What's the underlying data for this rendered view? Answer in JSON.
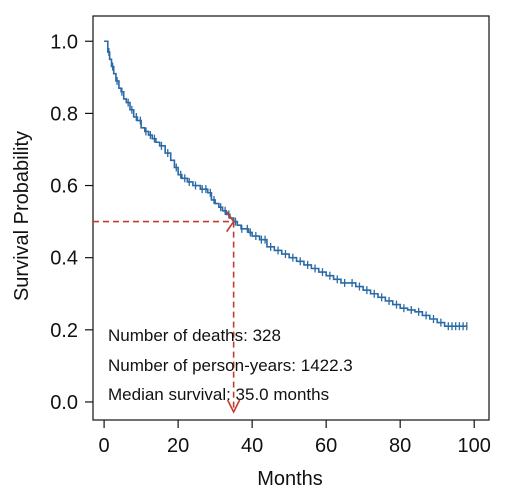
{
  "chart_data": {
    "type": "line",
    "xlabel": "Months",
    "ylabel": "Survival Probability",
    "xlim": [
      -3,
      104
    ],
    "ylim": [
      -0.05,
      1.07
    ],
    "xticks": [
      0,
      20,
      40,
      60,
      80,
      100
    ],
    "yticks": [
      0.0,
      0.2,
      0.4,
      0.6,
      0.8,
      1.0
    ],
    "xtick_labels": [
      "0",
      "20",
      "40",
      "60",
      "80",
      "100"
    ],
    "ytick_labels": [
      "0.0",
      "0.2",
      "0.4",
      "0.6",
      "0.8",
      "1.0"
    ],
    "grid": false,
    "series": [
      {
        "type": "step",
        "x": [
          0,
          1,
          1.5,
          2.0,
          2.6,
          3.2,
          4.0,
          4.6,
          5.3,
          6.0,
          7.0,
          8.0,
          9.0,
          10.0,
          11.0,
          12.0,
          13.0,
          14.0,
          15.0,
          16.5,
          18.0,
          19.0,
          20.0,
          21.0,
          22.5,
          24.0,
          26.0,
          28.0,
          29.0,
          30.0,
          31.0,
          32.0,
          33.0,
          34.0,
          35.0,
          36.0,
          37.0,
          38.0,
          39.0,
          40.0,
          42.0,
          44.0,
          46.0,
          48.0,
          50.0,
          52.0,
          54.0,
          56.0,
          58.0,
          60.0,
          62.0,
          64.0,
          66.0,
          68.0,
          70.0,
          72.0,
          74.0,
          76.0,
          78.0,
          80.0,
          82.0,
          84.0,
          86.0,
          88.0,
          90.0,
          92.0,
          94.0,
          96.0,
          98.0
        ],
        "y": [
          1.0,
          0.97,
          0.95,
          0.93,
          0.91,
          0.89,
          0.87,
          0.86,
          0.84,
          0.83,
          0.81,
          0.79,
          0.78,
          0.76,
          0.75,
          0.74,
          0.73,
          0.72,
          0.71,
          0.69,
          0.67,
          0.65,
          0.63,
          0.62,
          0.61,
          0.6,
          0.59,
          0.58,
          0.56,
          0.55,
          0.54,
          0.53,
          0.52,
          0.51,
          0.5,
          0.49,
          0.48,
          0.48,
          0.47,
          0.46,
          0.45,
          0.43,
          0.42,
          0.41,
          0.4,
          0.39,
          0.38,
          0.37,
          0.36,
          0.35,
          0.34,
          0.33,
          0.33,
          0.32,
          0.31,
          0.3,
          0.29,
          0.28,
          0.27,
          0.26,
          0.255,
          0.25,
          0.24,
          0.23,
          0.22,
          0.21,
          0.21,
          0.21,
          0.21
        ],
        "censored": [
          1.3,
          2.3,
          3.5,
          4.8,
          6.5,
          7.5,
          8.7,
          9.8,
          11.3,
          12.5,
          13.6,
          15.5,
          17.2,
          19.5,
          20.7,
          21.8,
          23.0,
          24.7,
          26.5,
          27.5,
          28.7,
          29.7,
          31.5,
          32.7,
          33.7,
          35.5,
          37.2,
          38.7,
          39.5,
          41.0,
          42.5,
          43.5,
          45.0,
          47.0,
          49.0,
          51.0,
          53.0,
          55.0,
          57.0,
          59.0,
          61.0,
          63.0,
          65.0,
          67.0,
          69.0,
          71.0,
          73.0,
          75.0,
          77.0,
          79.0,
          81.0,
          83.0,
          85.0,
          87.0,
          89.0,
          91.0,
          93.0,
          94.0,
          95.0,
          96.0,
          97.0,
          98.0
        ]
      }
    ],
    "annotations": [
      "Number of deaths: 328",
      "Number of person-years: 1422.3",
      "Median survival: 35.0 months"
    ],
    "median_survival": 35.0,
    "median_y": 0.5
  },
  "colors": {
    "curve": "#2a6aa6",
    "guide": "#c63a2e",
    "axis": "#111111"
  }
}
